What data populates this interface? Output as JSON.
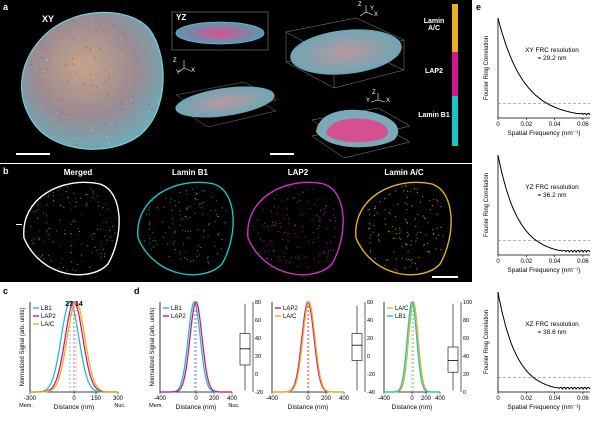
{
  "panels": {
    "a": "a",
    "b": "b",
    "c": "c",
    "d": "d",
    "e": "e"
  },
  "panel_a": {
    "xy_label": "XY",
    "yz_label": "YZ",
    "legend": [
      {
        "label": "Lamin A/C",
        "color": "#e8b21a"
      },
      {
        "label": "LAP2",
        "color": "#d4148c"
      },
      {
        "label": "Lamin B1",
        "color": "#18c4c4"
      }
    ],
    "axes_glyphs": [
      "Z",
      "X",
      "Y"
    ]
  },
  "panel_b": {
    "titles": [
      "Merged",
      "Lamin B1",
      "LAP2",
      "Lamin A/C"
    ],
    "colors": [
      "#c060c0",
      "#18c4c4",
      "#d030c8",
      "#e8b21a"
    ]
  },
  "chart_data": [
    {
      "id": "c",
      "type": "line",
      "xlabel": "Distance (nm)",
      "ylabel": "Normalized Signal (arb. units)",
      "x_ticks": [
        "-300",
        "0",
        "150",
        "300"
      ],
      "xlim": [
        -300,
        300
      ],
      "edge_labels": [
        "Mem.",
        "Nuc."
      ],
      "annotation": "27 14",
      "series": [
        {
          "name": "LB1",
          "color": "#18c4c4",
          "center": -27,
          "width": 85
        },
        {
          "name": "LAP2",
          "color": "#d4148c",
          "center": 0,
          "width": 85
        },
        {
          "name": "LA/C",
          "color": "#e8b21a",
          "center": 14,
          "width": 85
        }
      ]
    },
    {
      "id": "d1",
      "type": "line",
      "xlabel": "Distance (nm)",
      "ylabel": "Normalized Signal (arb. units)",
      "x_ticks": [
        "-400",
        "0",
        "200",
        "400"
      ],
      "xlim": [
        -400,
        400
      ],
      "edge_labels": [
        "Mem.",
        "Nuc."
      ],
      "series": [
        {
          "name": "LB1",
          "color": "#18c4c4",
          "center": -20,
          "width": 95
        },
        {
          "name": "LAP2",
          "color": "#d4148c",
          "center": 0,
          "width": 95
        }
      ],
      "box": {
        "ticks": [
          "80",
          "60",
          "40",
          "20",
          "0",
          "-20"
        ],
        "ylim": [
          -20,
          80
        ],
        "q1": 10,
        "median": 28,
        "q3": 45,
        "min": -18,
        "max": 78
      }
    },
    {
      "id": "d2",
      "type": "line",
      "xlabel": "Distance (nm)",
      "x_ticks": [
        "-400",
        "0",
        "200",
        "400"
      ],
      "xlim": [
        -400,
        400
      ],
      "series": [
        {
          "name": "LAP2",
          "color": "#d4148c",
          "center": 0,
          "width": 95
        },
        {
          "name": "LA/C",
          "color": "#e8b21a",
          "center": 10,
          "width": 95
        }
      ],
      "box": {
        "ticks": [
          "60",
          "40",
          "20",
          "0",
          "-20",
          "-40"
        ],
        "ylim": [
          -40,
          60
        ],
        "q1": -5,
        "median": 12,
        "q3": 25,
        "min": -38,
        "max": 56
      }
    },
    {
      "id": "d3",
      "type": "line",
      "xlabel": "Distance (nm)",
      "x_ticks": [
        "-400",
        "0",
        "200",
        "400"
      ],
      "xlim": [
        -400,
        400
      ],
      "series": [
        {
          "name": "LA/C",
          "color": "#e8b21a",
          "center": 20,
          "width": 95
        },
        {
          "name": "LB1",
          "color": "#18c4c4",
          "center": 0,
          "width": 95
        }
      ],
      "box": {
        "ticks": [
          "100",
          "80",
          "60",
          "40",
          "20",
          "0"
        ],
        "ylim": [
          0,
          100
        ],
        "q1": 22,
        "median": 35,
        "q3": 50,
        "min": 2,
        "max": 98
      }
    },
    {
      "id": "e1",
      "type": "line",
      "xlabel": "Spatial Frequency (nm⁻¹)",
      "ylabel": "Fourier Ring Correlation",
      "x_ticks": [
        "0",
        "0.02",
        "0.04",
        "0.06"
      ],
      "y_ticks": [
        "0",
        "0.2",
        "0.4",
        "0.6",
        "0.8",
        "1"
      ],
      "xlim": [
        0,
        0.065
      ],
      "ylim": [
        0,
        1
      ],
      "threshold": 0.143,
      "annotation": [
        "XY FRC resolution",
        "= 29.2 nm"
      ],
      "decay": 0.018
    },
    {
      "id": "e2",
      "type": "line",
      "xlabel": "Spatial Frequency (nm⁻¹)",
      "ylabel": "Fourier Ring Correlation",
      "x_ticks": [
        "0",
        "0.02",
        "0.04",
        "0.06"
      ],
      "y_ticks": [
        "0",
        "0.2",
        "0.4",
        "0.6",
        "0.8",
        "1"
      ],
      "xlim": [
        0,
        0.065
      ],
      "ylim": [
        0,
        1
      ],
      "threshold": 0.143,
      "annotation": [
        "YZ FRC resolution",
        "= 36.2 nm"
      ],
      "decay": 0.014
    },
    {
      "id": "e3",
      "type": "line",
      "xlabel": "Spatial Frequency (nm⁻¹)",
      "ylabel": "Fourier Ring Correlation",
      "x_ticks": [
        "0",
        "0.02",
        "0.04",
        "0.06"
      ],
      "y_ticks": [
        "0",
        "0.2",
        "0.4",
        "0.6",
        "0.8",
        "1"
      ],
      "xlim": [
        0,
        0.065
      ],
      "ylim": [
        0,
        1
      ],
      "threshold": 0.143,
      "annotation": [
        "XZ FRC resolution",
        "= 38.6 nm"
      ],
      "decay": 0.013
    }
  ]
}
